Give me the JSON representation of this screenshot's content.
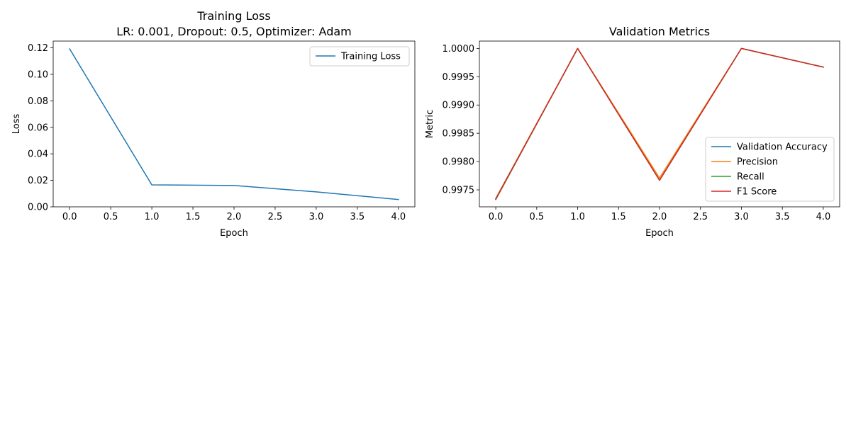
{
  "chart_data": [
    {
      "type": "line",
      "title": "Training Loss",
      "subtitle": "LR: 0.001, Dropout: 0.5, Optimizer: Adam",
      "xlabel": "Epoch",
      "ylabel": "Loss",
      "x": [
        0,
        1,
        2,
        3,
        4
      ],
      "xlim": [
        -0.2,
        4.2
      ],
      "ylim": [
        0,
        0.1251
      ],
      "xticks": [
        "0.0",
        "0.5",
        "1.0",
        "1.5",
        "2.0",
        "2.5",
        "3.0",
        "3.5",
        "4.0"
      ],
      "yticks": [
        "0.00",
        "0.02",
        "0.04",
        "0.06",
        "0.08",
        "0.10",
        "0.12"
      ],
      "grid": false,
      "legend_position": "upper-right",
      "series": [
        {
          "name": "Training Loss",
          "color": "#1f77b4",
          "values": [
            0.1192,
            0.0166,
            0.0161,
            0.0113,
            0.0055
          ]
        }
      ]
    },
    {
      "type": "line",
      "title": "Validation Metrics",
      "xlabel": "Epoch",
      "ylabel": "Metric",
      "x": [
        0,
        1,
        2,
        3,
        4
      ],
      "xlim": [
        -0.2,
        4.2
      ],
      "ylim": [
        0.9972,
        1.00013
      ],
      "xticks": [
        "0.0",
        "0.5",
        "1.0",
        "1.5",
        "2.0",
        "2.5",
        "3.0",
        "3.5",
        "4.0"
      ],
      "yticks": [
        "0.9975",
        "0.9980",
        "0.9985",
        "0.9990",
        "0.9995",
        "1.0000"
      ],
      "grid": false,
      "legend_position": "lower-right",
      "series": [
        {
          "name": "Validation Accuracy",
          "color": "#1f77b4",
          "values": [
            0.99733,
            1.0,
            0.99767,
            1.0,
            0.99967
          ]
        },
        {
          "name": "Precision",
          "color": "#ff7f0e",
          "values": [
            0.99735,
            1.0,
            0.99771,
            1.0,
            0.99967
          ]
        },
        {
          "name": "Recall",
          "color": "#2ca02c",
          "values": [
            0.99733,
            1.0,
            0.99767,
            1.0,
            0.99967
          ]
        },
        {
          "name": "F1 Score",
          "color": "#d62728",
          "values": [
            0.99734,
            1.0,
            0.99767,
            1.0,
            0.99967
          ]
        }
      ]
    }
  ]
}
